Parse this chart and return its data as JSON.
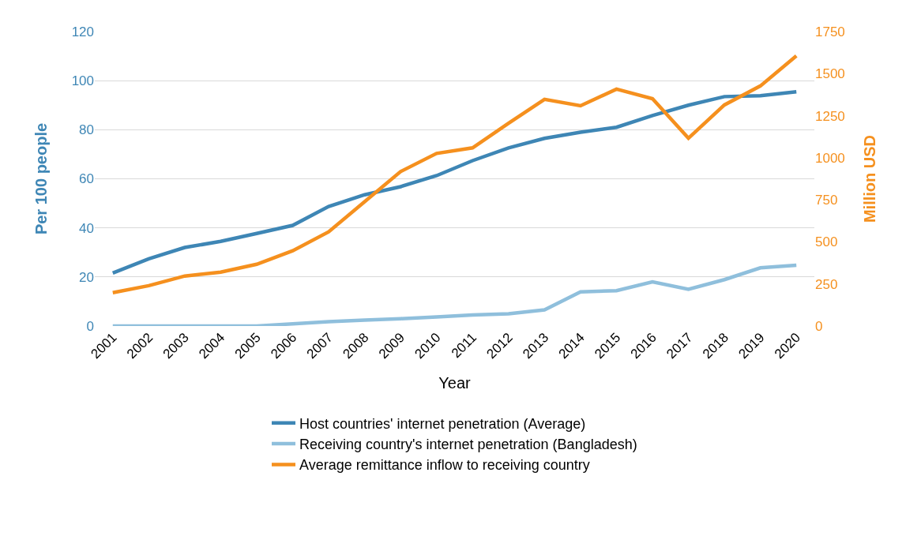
{
  "chart_data": {
    "type": "line",
    "xlabel": "Year",
    "ylabel": "Per 100 people",
    "y2label": "Million USD",
    "categories": [
      "2001",
      "2002",
      "2003",
      "2004",
      "2005",
      "2006",
      "2007",
      "2008",
      "2009",
      "2010",
      "2011",
      "2012",
      "2013",
      "2014",
      "2015",
      "2016",
      "2017",
      "2018",
      "2019",
      "2020"
    ],
    "series": [
      {
        "name": "Host countries' internet penetration (Average)",
        "color": "#3e86b5",
        "values": [
          21.6,
          27.4,
          32,
          34.5,
          37.7,
          41,
          48.7,
          53.5,
          56.8,
          61.3,
          67.4,
          72.6,
          76.5,
          79,
          81,
          85.8,
          90,
          93.5,
          93.9,
          95.5
        ]
      },
      {
        "name": "Receiving country's internet penetration (Bangladesh)",
        "color": "#8fbfdc",
        "values": [
          0,
          0,
          0,
          0,
          0,
          0.9,
          1.8,
          2.4,
          3,
          3.7,
          4.5,
          5,
          6.6,
          13.9,
          14.4,
          18,
          15,
          18.9,
          23.7,
          24.8
        ]
      },
      {
        "name": "Average remittance inflow to receiving country",
        "color": "#f5901e",
        "axis": "y2",
        "values": [
          198,
          240,
          297,
          320,
          367,
          447,
          560,
          739,
          918,
          1026,
          1059,
          1205,
          1347,
          1309,
          1408,
          1351,
          1116,
          1314,
          1427,
          1606
        ]
      }
    ],
    "ylim": [
      0,
      120
    ],
    "yticks": [
      0,
      20,
      40,
      60,
      80,
      100,
      120
    ],
    "y2lim": [
      0,
      1750
    ],
    "y2ticks": [
      0,
      250,
      500,
      750,
      1000,
      1250,
      1500,
      1750
    ],
    "grid": "y",
    "legend": "bottom",
    "marker": "none",
    "line_style": "solid"
  }
}
